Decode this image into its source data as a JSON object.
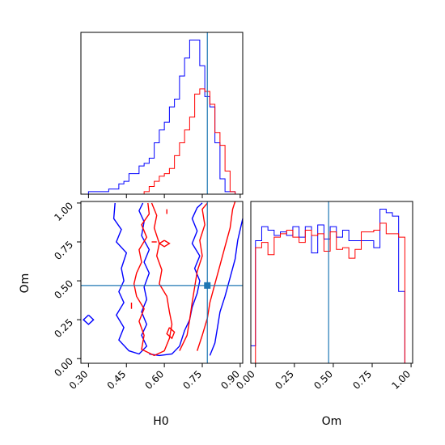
{
  "chart_data": [
    {
      "type": "histogram",
      "panel": "H0 marginal",
      "xlabel": "",
      "ylabel": "",
      "xlim": [
        0.27,
        0.91
      ],
      "xticks": [
        0.3,
        0.45,
        0.6,
        0.75,
        0.9
      ],
      "truth": 0.77,
      "bin_edges": [
        0.27,
        0.3,
        0.32,
        0.34,
        0.36,
        0.38,
        0.4,
        0.42,
        0.44,
        0.46,
        0.48,
        0.5,
        0.52,
        0.54,
        0.56,
        0.58,
        0.6,
        0.62,
        0.64,
        0.66,
        0.68,
        0.7,
        0.72,
        0.74,
        0.76,
        0.78,
        0.8,
        0.82,
        0.84,
        0.86,
        0.88,
        0.9,
        0.91
      ],
      "series": [
        {
          "color": "#0000ff",
          "values": [
            0,
            1,
            1,
            1,
            1,
            2,
            2,
            4,
            5,
            8,
            8,
            11,
            12,
            14,
            20,
            25,
            28,
            34,
            37,
            46,
            53,
            60,
            60,
            50,
            38,
            34,
            20,
            6,
            1,
            1,
            0,
            0
          ]
        },
        {
          "color": "#ff0000",
          "values": [
            0,
            0,
            0,
            0,
            0,
            0,
            0,
            0,
            0,
            0,
            0,
            0,
            1,
            3,
            5,
            7,
            8,
            10,
            15,
            20,
            25,
            30,
            39,
            41,
            40,
            35,
            24,
            19,
            9,
            1,
            0,
            0
          ]
        }
      ]
    },
    {
      "type": "histogram",
      "panel": "Om marginal",
      "xlabel": "Om",
      "ylabel": "",
      "xlim": [
        -0.03,
        1.01
      ],
      "xticks": [
        "0.00",
        "0.25",
        "0.50",
        "0.75",
        "1.00"
      ],
      "truth": 0.47,
      "bin_edges": [
        -0.03,
        0.0,
        0.04,
        0.08,
        0.12,
        0.16,
        0.2,
        0.24,
        0.28,
        0.32,
        0.36,
        0.4,
        0.44,
        0.48,
        0.52,
        0.56,
        0.6,
        0.64,
        0.68,
        0.72,
        0.76,
        0.8,
        0.84,
        0.88,
        0.92,
        0.96,
        1.0
      ],
      "series": [
        {
          "color": "#0000ff",
          "values": [
            10,
            70,
            78,
            76,
            73,
            75,
            73,
            78,
            72,
            78,
            63,
            79,
            71,
            78,
            72,
            76,
            70,
            70,
            70,
            70,
            66,
            88,
            86,
            84,
            41,
            0
          ]
        },
        {
          "color": "#ff0000",
          "values": [
            0,
            66,
            69,
            62,
            72,
            74,
            76,
            72,
            69,
            76,
            73,
            74,
            64,
            75,
            65,
            66,
            60,
            65,
            75,
            75,
            76,
            80,
            74,
            74,
            72,
            0
          ]
        }
      ]
    },
    {
      "type": "contour",
      "panel": "H0 vs Om",
      "xlabel": "H0",
      "ylabel": "Om",
      "xlim": [
        0.27,
        0.91
      ],
      "ylim": [
        -0.03,
        1.01
      ],
      "xticks": [
        "0.30",
        "0.45",
        "0.60",
        "0.75",
        "0.90"
      ],
      "yticks": [
        "0.00",
        "0.25",
        "0.50",
        "0.75",
        "1.00"
      ],
      "truth": [
        0.77,
        0.47
      ],
      "contours": [
        {
          "color": "#0000ff",
          "level": "outer",
          "points": [
            [
              0.405,
              1.0
            ],
            [
              0.4,
              0.9
            ],
            [
              0.43,
              0.83
            ],
            [
              0.41,
              0.75
            ],
            [
              0.45,
              0.68
            ],
            [
              0.43,
              0.58
            ],
            [
              0.44,
              0.5
            ],
            [
              0.42,
              0.43
            ],
            [
              0.44,
              0.36
            ],
            [
              0.41,
              0.28
            ],
            [
              0.44,
              0.2
            ],
            [
              0.42,
              0.12
            ],
            [
              0.46,
              0.05
            ],
            [
              0.5,
              0.03
            ],
            [
              0.53,
              0.08
            ],
            [
              0.51,
              0.15
            ],
            [
              0.53,
              0.22
            ],
            [
              0.51,
              0.3
            ],
            [
              0.53,
              0.38
            ],
            [
              0.52,
              0.46
            ],
            [
              0.54,
              0.55
            ],
            [
              0.52,
              0.62
            ],
            [
              0.54,
              0.7
            ],
            [
              0.51,
              0.79
            ],
            [
              0.52,
              0.88
            ],
            [
              0.5,
              0.95
            ],
            [
              0.515,
              1.0
            ]
          ]
        },
        {
          "color": "#0000ff",
          "level": "inner-left",
          "points": [
            [
              0.54,
              0.03
            ],
            [
              0.58,
              0.02
            ],
            [
              0.63,
              0.03
            ],
            [
              0.66,
              0.08
            ],
            [
              0.68,
              0.18
            ],
            [
              0.7,
              0.25
            ],
            [
              0.71,
              0.33
            ],
            [
              0.73,
              0.42
            ],
            [
              0.74,
              0.5
            ],
            [
              0.72,
              0.58
            ],
            [
              0.74,
              0.66
            ],
            [
              0.71,
              0.74
            ],
            [
              0.73,
              0.82
            ],
            [
              0.71,
              0.9
            ],
            [
              0.73,
              0.97
            ],
            [
              0.75,
              1.0
            ]
          ]
        },
        {
          "color": "#0000ff",
          "level": "inner-right",
          "points": [
            [
              0.78,
              0.02
            ],
            [
              0.8,
              0.1
            ],
            [
              0.81,
              0.2
            ],
            [
              0.82,
              0.3
            ],
            [
              0.84,
              0.4
            ],
            [
              0.86,
              0.52
            ],
            [
              0.88,
              0.64
            ],
            [
              0.89,
              0.76
            ],
            [
              0.91,
              0.9
            ]
          ]
        },
        {
          "color": "#0000ff",
          "level": "island",
          "points": [
            [
              0.3,
              0.28
            ],
            [
              0.32,
              0.25
            ],
            [
              0.3,
              0.22
            ],
            [
              0.28,
              0.25
            ],
            [
              0.3,
              0.28
            ]
          ]
        },
        {
          "color": "#ff0000",
          "level": "outer",
          "points": [
            [
              0.535,
              1.0
            ],
            [
              0.54,
              0.93
            ],
            [
              0.51,
              0.86
            ],
            [
              0.53,
              0.78
            ],
            [
              0.5,
              0.7
            ],
            [
              0.51,
              0.62
            ],
            [
              0.49,
              0.55
            ],
            [
              0.48,
              0.48
            ],
            [
              0.49,
              0.4
            ],
            [
              0.52,
              0.32
            ],
            [
              0.5,
              0.24
            ],
            [
              0.52,
              0.15
            ],
            [
              0.51,
              0.06
            ],
            [
              0.56,
              0.02
            ],
            [
              0.6,
              0.05
            ],
            [
              0.62,
              0.13
            ],
            [
              0.63,
              0.22
            ],
            [
              0.62,
              0.3
            ],
            [
              0.61,
              0.4
            ],
            [
              0.58,
              0.48
            ],
            [
              0.59,
              0.57
            ],
            [
              0.57,
              0.66
            ],
            [
              0.58,
              0.74
            ],
            [
              0.56,
              0.84
            ],
            [
              0.57,
              0.92
            ],
            [
              0.55,
              1.0
            ]
          ]
        },
        {
          "color": "#ff0000",
          "level": "inner-left",
          "points": [
            [
              0.66,
              0.05
            ],
            [
              0.69,
              0.15
            ],
            [
              0.7,
              0.25
            ],
            [
              0.71,
              0.36
            ],
            [
              0.72,
              0.46
            ],
            [
              0.73,
              0.56
            ],
            [
              0.75,
              0.66
            ],
            [
              0.74,
              0.76
            ],
            [
              0.76,
              0.86
            ],
            [
              0.75,
              0.96
            ],
            [
              0.77,
              1.0
            ]
          ]
        },
        {
          "color": "#ff0000",
          "level": "inner-right",
          "points": [
            [
              0.73,
              0.05
            ],
            [
              0.75,
              0.15
            ],
            [
              0.77,
              0.26
            ],
            [
              0.78,
              0.36
            ],
            [
              0.8,
              0.48
            ],
            [
              0.82,
              0.6
            ],
            [
              0.84,
              0.72
            ],
            [
              0.86,
              0.84
            ],
            [
              0.87,
              0.96
            ],
            [
              0.88,
              1.01
            ]
          ]
        },
        {
          "color": "#ff0000",
          "level": "island-a",
          "points": [
            [
              0.62,
              0.2
            ],
            [
              0.64,
              0.17
            ],
            [
              0.63,
              0.13
            ],
            [
              0.61,
              0.16
            ],
            [
              0.62,
              0.2
            ]
          ]
        },
        {
          "color": "#ff0000",
          "level": "island-b",
          "points": [
            [
              0.6,
              0.76
            ],
            [
              0.62,
              0.74
            ],
            [
              0.6,
              0.72
            ],
            [
              0.58,
              0.74
            ],
            [
              0.6,
              0.76
            ]
          ]
        },
        {
          "color": "#ff0000",
          "level": "tick-a",
          "points": [
            [
              0.55,
              0.75
            ],
            [
              0.57,
              0.75
            ]
          ]
        },
        {
          "color": "#ff0000",
          "level": "tick-b",
          "points": [
            [
              0.47,
              0.36
            ],
            [
              0.47,
              0.32
            ]
          ]
        },
        {
          "color": "#ff0000",
          "level": "tick-c",
          "points": [
            [
              0.61,
              0.93
            ],
            [
              0.61,
              0.96
            ]
          ]
        }
      ]
    }
  ]
}
